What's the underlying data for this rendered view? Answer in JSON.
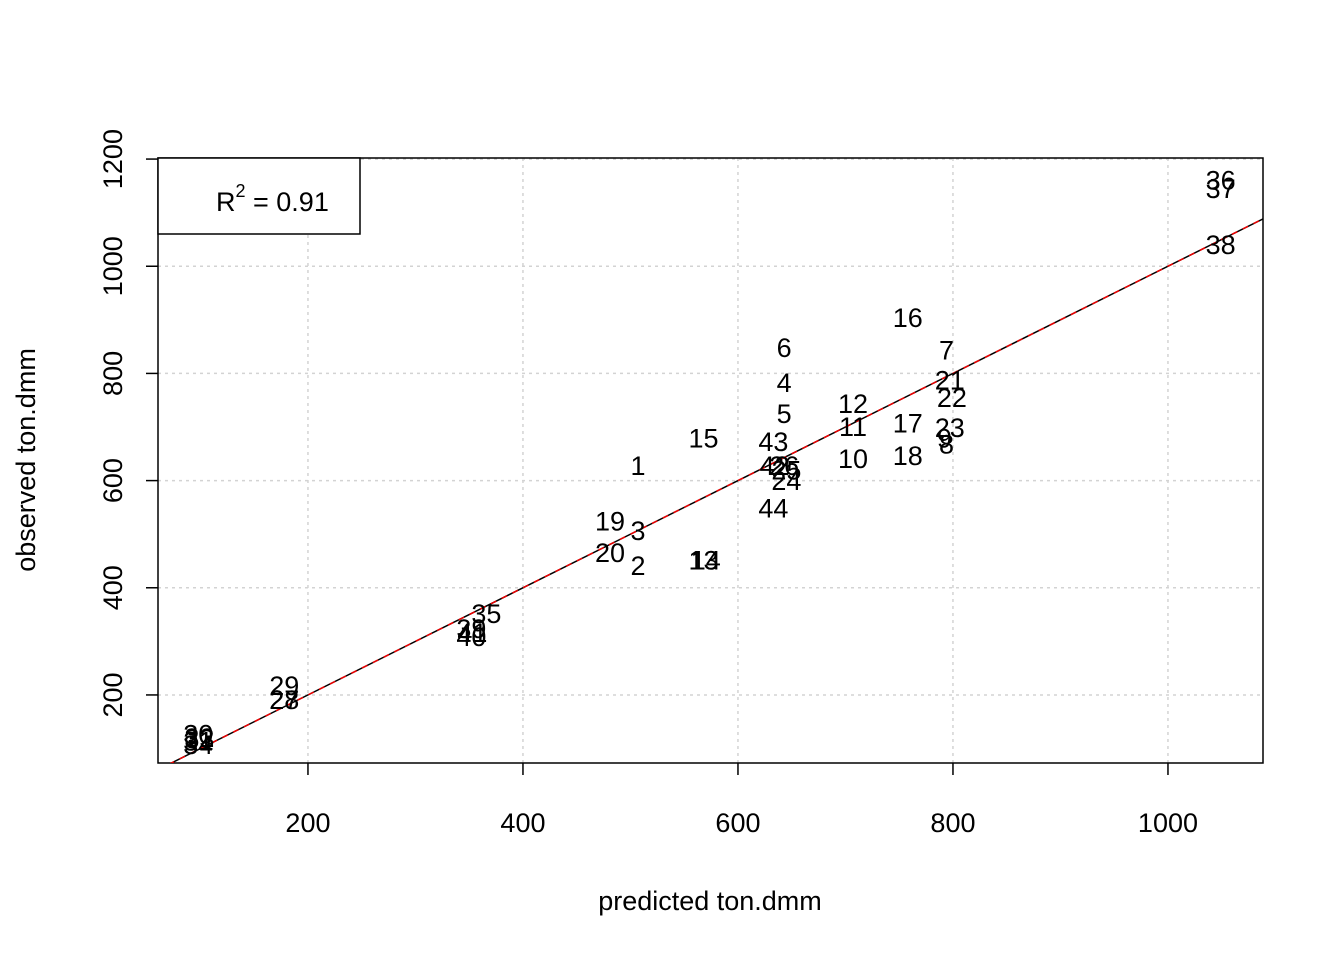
{
  "chart_data": {
    "type": "scatter",
    "x_label": "predicted ton.dmm",
    "y_label": "observed ton.dmm",
    "legend": {
      "base": "R",
      "superscript": "2",
      "rest": " = 0.91"
    },
    "labels": [
      "1",
      "2",
      "3",
      "4",
      "5",
      "6",
      "7",
      "8",
      "9",
      "10",
      "11",
      "12",
      "13",
      "14",
      "15",
      "16",
      "17",
      "18",
      "19",
      "20",
      "21",
      "22",
      "23",
      "24",
      "25",
      "26",
      "27",
      "28",
      "29",
      "30",
      "31",
      "32",
      "33",
      "34",
      "35",
      "36",
      "37",
      "38",
      "39",
      "40",
      "41",
      "42",
      "43",
      "44"
    ],
    "x": [
      507,
      507,
      507,
      643,
      643,
      643,
      794,
      794,
      792,
      707,
      707,
      707,
      568,
      570,
      568,
      758,
      758,
      758,
      481,
      481,
      797,
      799,
      797,
      645,
      645,
      643,
      178,
      178,
      178,
      98,
      98,
      99,
      99,
      98,
      366,
      1049,
      1049,
      1049,
      352,
      352,
      353,
      634,
      633,
      633
    ],
    "y": [
      627,
      441,
      506,
      782,
      724,
      847,
      843,
      667,
      679,
      640,
      700,
      743,
      451,
      451,
      679,
      903,
      707,
      646,
      524,
      465,
      787,
      754,
      698,
      599,
      619,
      627,
      191,
      191,
      217,
      126,
      113,
      120,
      118,
      107,
      351,
      1160,
      1144,
      1040,
      323,
      308,
      316,
      627,
      672,
      548
    ],
    "xlim": [
      60.5,
      1088.4
    ],
    "ylim": [
      73,
      1202
    ],
    "xticks": [
      200,
      400,
      600,
      800,
      1000
    ],
    "yticks": [
      200,
      400,
      600,
      800,
      1000,
      1200
    ],
    "grid": true,
    "color": "#000000"
  }
}
